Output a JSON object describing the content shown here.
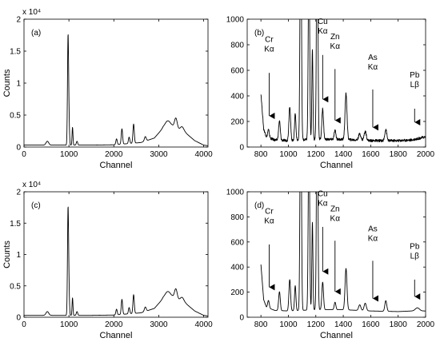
{
  "chart_data": [
    {
      "id": "a",
      "type": "line",
      "panel_label": "(a)",
      "xlabel": "Channel",
      "ylabel": "Counts",
      "scale_note": "x 10⁴",
      "xlim": [
        0,
        4096
      ],
      "ylim": [
        0,
        20000
      ],
      "xticks": [
        0,
        1000,
        2000,
        3000,
        4000
      ],
      "yticks": [
        0,
        5000,
        10000,
        15000,
        20000
      ],
      "ytick_labels": [
        "0",
        "0.5",
        "1",
        "1.5",
        "2"
      ],
      "baseline": [
        [
          0,
          300
        ],
        [
          500,
          300
        ],
        [
          1500,
          300
        ],
        [
          2000,
          350
        ],
        [
          2600,
          700
        ],
        [
          2900,
          1400
        ],
        [
          3100,
          3000
        ],
        [
          3300,
          3200
        ],
        [
          3600,
          2200
        ],
        [
          3800,
          1000
        ],
        [
          4000,
          300
        ],
        [
          4096,
          200
        ]
      ],
      "peaks": [
        [
          520,
          600,
          30
        ],
        [
          980,
          16500,
          12
        ],
        [
          1000,
          3500,
          12
        ],
        [
          1080,
          2800,
          10
        ],
        [
          1180,
          600,
          15
        ],
        [
          2060,
          900,
          15
        ],
        [
          2180,
          2400,
          15
        ],
        [
          2340,
          1000,
          15
        ],
        [
          2440,
          3000,
          15
        ],
        [
          2700,
          700,
          20
        ],
        [
          3200,
          1000,
          60
        ],
        [
          3380,
          1600,
          30
        ],
        [
          3520,
          700,
          40
        ]
      ],
      "noise": 0
    },
    {
      "id": "b",
      "type": "line",
      "panel_label": "(b)",
      "xlabel": "Channel",
      "ylabel": "",
      "scale_note": "",
      "xlim": [
        700,
        2000
      ],
      "ylim": [
        0,
        1000
      ],
      "xticks": [
        800,
        1000,
        1200,
        1400,
        1600,
        1800,
        2000
      ],
      "yticks": [
        0,
        200,
        400,
        600,
        800,
        1000
      ],
      "ytick_labels": [
        "0",
        "200",
        "400",
        "600",
        "800",
        "1000"
      ],
      "baseline": [
        [
          800,
          420
        ],
        [
          820,
          140
        ],
        [
          840,
          80
        ],
        [
          900,
          55
        ],
        [
          1000,
          50
        ],
        [
          1200,
          60
        ],
        [
          1400,
          60
        ],
        [
          1500,
          55
        ],
        [
          1600,
          50
        ],
        [
          1800,
          50
        ],
        [
          1900,
          55
        ],
        [
          2000,
          80
        ]
      ],
      "peaks": [
        [
          855,
          60,
          6
        ],
        [
          935,
          150,
          6
        ],
        [
          1010,
          270,
          6
        ],
        [
          1050,
          210,
          5
        ],
        [
          1090,
          2000,
          5
        ],
        [
          1150,
          1500,
          5
        ],
        [
          1175,
          700,
          4
        ],
        [
          1210,
          2000,
          5
        ],
        [
          1250,
          240,
          6
        ],
        [
          1340,
          70,
          6
        ],
        [
          1420,
          360,
          7
        ],
        [
          1520,
          50,
          8
        ],
        [
          1560,
          70,
          8
        ],
        [
          1710,
          90,
          7
        ]
      ],
      "noise": 10,
      "annotations": [
        {
          "label": [
            "Cr",
            "Kα"
          ],
          "x": 860,
          "y_text": 760,
          "y_arrow_top": 580,
          "y_arrow_bottom": 200
        },
        {
          "label": [
            "Cu",
            "Kα"
          ],
          "x": 1250,
          "y_text": 900,
          "y_arrow_top": 720,
          "y_arrow_bottom": 330
        },
        {
          "label": [
            "Zn",
            "Kα"
          ],
          "x": 1340,
          "y_text": 780,
          "y_arrow_top": 610,
          "y_arrow_bottom": 165
        },
        {
          "label": [
            "As",
            "Kα"
          ],
          "x": 1615,
          "y_text": 620,
          "y_arrow_top": 450,
          "y_arrow_bottom": 110
        },
        {
          "label": [
            "Pb",
            "Lβ"
          ],
          "x": 1920,
          "y_text": 480,
          "y_arrow_top": 300,
          "y_arrow_bottom": 150
        }
      ]
    },
    {
      "id": "c",
      "type": "line",
      "panel_label": "(c)",
      "xlabel": "Channel",
      "ylabel": "Counts",
      "scale_note": "x 10⁴",
      "xlim": [
        0,
        4096
      ],
      "ylim": [
        0,
        20000
      ],
      "xticks": [
        0,
        1000,
        2000,
        3000,
        4000
      ],
      "yticks": [
        0,
        5000,
        10000,
        15000,
        20000
      ],
      "ytick_labels": [
        "0",
        "0.5",
        "1",
        "1.5",
        "2"
      ],
      "baseline": [
        [
          0,
          300
        ],
        [
          500,
          300
        ],
        [
          1500,
          300
        ],
        [
          2000,
          350
        ],
        [
          2600,
          700
        ],
        [
          2900,
          1400
        ],
        [
          3100,
          3000
        ],
        [
          3300,
          3200
        ],
        [
          3600,
          2200
        ],
        [
          3800,
          1000
        ],
        [
          4000,
          300
        ],
        [
          4096,
          200
        ]
      ],
      "peaks": [
        [
          520,
          600,
          30
        ],
        [
          980,
          16500,
          12
        ],
        [
          1000,
          3500,
          12
        ],
        [
          1080,
          2800,
          10
        ],
        [
          1180,
          600,
          15
        ],
        [
          2060,
          900,
          15
        ],
        [
          2180,
          2400,
          15
        ],
        [
          2340,
          1000,
          15
        ],
        [
          2440,
          3000,
          15
        ],
        [
          2700,
          700,
          20
        ],
        [
          3200,
          1000,
          60
        ],
        [
          3380,
          1600,
          30
        ],
        [
          3520,
          700,
          40
        ]
      ],
      "noise": 0
    },
    {
      "id": "d",
      "type": "line",
      "panel_label": "(d)",
      "xlabel": "Channel",
      "ylabel": "",
      "scale_note": "",
      "xlim": [
        700,
        2000
      ],
      "ylim": [
        0,
        1000
      ],
      "xticks": [
        800,
        1000,
        1200,
        1400,
        1600,
        1800,
        2000
      ],
      "yticks": [
        0,
        200,
        400,
        600,
        800,
        1000
      ],
      "ytick_labels": [
        "0",
        "200",
        "400",
        "600",
        "800",
        "1000"
      ],
      "baseline": [
        [
          800,
          420
        ],
        [
          820,
          140
        ],
        [
          840,
          80
        ],
        [
          900,
          55
        ],
        [
          1000,
          50
        ],
        [
          1200,
          60
        ],
        [
          1400,
          60
        ],
        [
          1500,
          55
        ],
        [
          1600,
          50
        ],
        [
          1800,
          45
        ],
        [
          1900,
          50
        ],
        [
          2000,
          50
        ]
      ],
      "peaks": [
        [
          855,
          60,
          6
        ],
        [
          935,
          150,
          6
        ],
        [
          1010,
          250,
          6
        ],
        [
          1050,
          200,
          5
        ],
        [
          1090,
          2000,
          5
        ],
        [
          1150,
          1500,
          5
        ],
        [
          1175,
          700,
          4
        ],
        [
          1210,
          2000,
          5
        ],
        [
          1250,
          220,
          6
        ],
        [
          1340,
          60,
          6
        ],
        [
          1420,
          330,
          7
        ],
        [
          1520,
          45,
          8
        ],
        [
          1560,
          60,
          8
        ],
        [
          1710,
          85,
          7
        ],
        [
          1940,
          25,
          15
        ]
      ],
      "noise": 0,
      "annotations": [
        {
          "label": [
            "Cr",
            "Kα"
          ],
          "x": 860,
          "y_text": 760,
          "y_arrow_top": 580,
          "y_arrow_bottom": 195
        },
        {
          "label": [
            "Cu",
            "Kα"
          ],
          "x": 1250,
          "y_text": 900,
          "y_arrow_top": 720,
          "y_arrow_bottom": 320
        },
        {
          "label": [
            "Zn",
            "Kα"
          ],
          "x": 1340,
          "y_text": 780,
          "y_arrow_top": 610,
          "y_arrow_bottom": 160
        },
        {
          "label": [
            "As",
            "Kα"
          ],
          "x": 1615,
          "y_text": 620,
          "y_arrow_top": 450,
          "y_arrow_bottom": 105
        },
        {
          "label": [
            "Pb",
            "Lβ"
          ],
          "x": 1920,
          "y_text": 480,
          "y_arrow_top": 300,
          "y_arrow_bottom": 120
        }
      ]
    }
  ]
}
